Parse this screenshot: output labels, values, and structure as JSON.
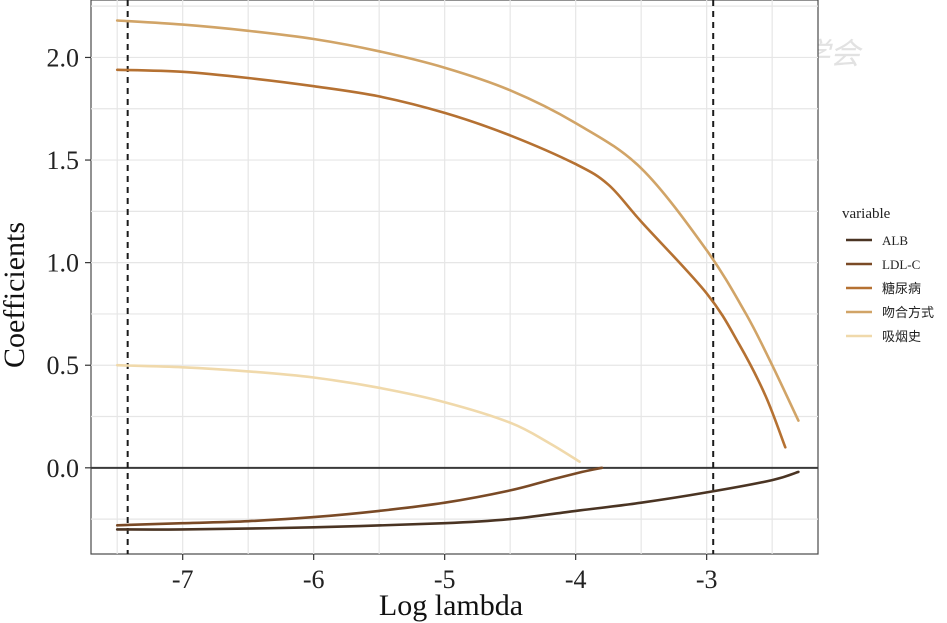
{
  "watermark": {
    "text": "中华医学会"
  },
  "chart_data": {
    "type": "line",
    "xlabel": "Log lambda",
    "ylabel": "Coefficients",
    "xlim": [
      -7.7,
      -2.15
    ],
    "ylim": [
      -0.42,
      2.28
    ],
    "xticks": [
      -7,
      -6,
      -5,
      -4,
      -3
    ],
    "xtick_labels": [
      "-7",
      "-6",
      "-5",
      "-4",
      "-3"
    ],
    "yticks": [
      0.0,
      0.5,
      1.0,
      1.5,
      2.0
    ],
    "ytick_labels": [
      "0.0",
      "0.5",
      "1.0",
      "1.5",
      "2.0"
    ],
    "grid": true,
    "zero_line": 0,
    "vlines": [
      -7.42,
      -2.95
    ],
    "legend": {
      "title": "variable",
      "position": "right"
    },
    "series": [
      {
        "name": "ALB",
        "color": "#4a3423",
        "points": [
          [
            -7.5,
            -0.3
          ],
          [
            -7.0,
            -0.3
          ],
          [
            -6.0,
            -0.29
          ],
          [
            -5.0,
            -0.27
          ],
          [
            -4.5,
            -0.25
          ],
          [
            -4.0,
            -0.21
          ],
          [
            -3.5,
            -0.17
          ],
          [
            -3.0,
            -0.12
          ],
          [
            -2.5,
            -0.06
          ],
          [
            -2.3,
            -0.02
          ]
        ]
      },
      {
        "name": "LDL-C",
        "color": "#7a4a26",
        "points": [
          [
            -7.5,
            -0.28
          ],
          [
            -7.0,
            -0.27
          ],
          [
            -6.5,
            -0.26
          ],
          [
            -6.0,
            -0.24
          ],
          [
            -5.5,
            -0.21
          ],
          [
            -5.0,
            -0.17
          ],
          [
            -4.5,
            -0.11
          ],
          [
            -4.2,
            -0.06
          ],
          [
            -3.95,
            -0.02
          ],
          [
            -3.8,
            0.0
          ]
        ]
      },
      {
        "name": "糖尿病",
        "color": "#b57132",
        "points": [
          [
            -7.5,
            1.94
          ],
          [
            -7.0,
            1.93
          ],
          [
            -6.5,
            1.9
          ],
          [
            -6.0,
            1.86
          ],
          [
            -5.5,
            1.81
          ],
          [
            -5.0,
            1.73
          ],
          [
            -4.5,
            1.62
          ],
          [
            -4.0,
            1.48
          ],
          [
            -3.75,
            1.38
          ],
          [
            -3.5,
            1.2
          ],
          [
            -3.0,
            0.85
          ],
          [
            -2.75,
            0.6
          ],
          [
            -2.55,
            0.35
          ],
          [
            -2.4,
            0.1
          ]
        ]
      },
      {
        "name": "吻合方式",
        "color": "#d1a467",
        "points": [
          [
            -7.5,
            2.18
          ],
          [
            -7.0,
            2.16
          ],
          [
            -6.5,
            2.13
          ],
          [
            -6.0,
            2.09
          ],
          [
            -5.5,
            2.03
          ],
          [
            -5.0,
            1.95
          ],
          [
            -4.5,
            1.84
          ],
          [
            -4.0,
            1.68
          ],
          [
            -3.5,
            1.46
          ],
          [
            -3.0,
            1.06
          ],
          [
            -2.7,
            0.75
          ],
          [
            -2.5,
            0.5
          ],
          [
            -2.3,
            0.23
          ]
        ]
      },
      {
        "name": "吸烟史",
        "color": "#f0d9ab",
        "points": [
          [
            -7.5,
            0.5
          ],
          [
            -7.0,
            0.49
          ],
          [
            -6.5,
            0.47
          ],
          [
            -6.0,
            0.44
          ],
          [
            -5.5,
            0.39
          ],
          [
            -5.0,
            0.32
          ],
          [
            -4.5,
            0.22
          ],
          [
            -4.2,
            0.12
          ],
          [
            -3.97,
            0.03
          ]
        ]
      }
    ]
  }
}
